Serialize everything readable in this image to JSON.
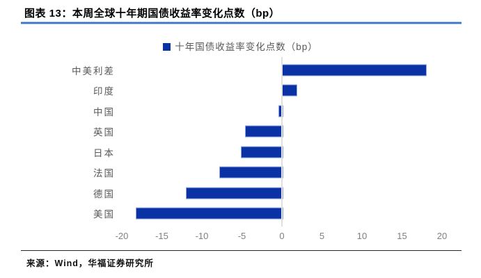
{
  "title": "图表 13：本周全球十年期国债收益率变化点数（bp）",
  "footer": {
    "source": "来源：Wind，华福证券研究所"
  },
  "colors": {
    "bar": "#0B32A4",
    "bar_border": "#8FA8DC",
    "title_rule": "#4472C4",
    "zero_line": "#E0E0E0",
    "tick_text": "#7F7F7F",
    "category_text": "#595959",
    "footer_rule": "#262626"
  },
  "chart_data": {
    "type": "bar",
    "orientation": "horizontal",
    "title": "图表 13：本周全球十年期国债收益率变化点数（bp）",
    "legend": [
      "十年国债收益率变化点数（bp）"
    ],
    "legend_position": "top-center",
    "categories": [
      "中美利差",
      "印度",
      "中国",
      "英国",
      "日本",
      "法国",
      "德国",
      "美国"
    ],
    "values": [
      17.9,
      1.7,
      -0.4,
      -4.6,
      -5.1,
      -7.8,
      -12.0,
      -18.3
    ],
    "xlim": [
      -20,
      20
    ],
    "xticks": [
      -20,
      -15,
      -10,
      -5,
      0,
      5,
      10,
      15,
      20
    ],
    "grid": false,
    "xlabel": "",
    "ylabel": ""
  }
}
